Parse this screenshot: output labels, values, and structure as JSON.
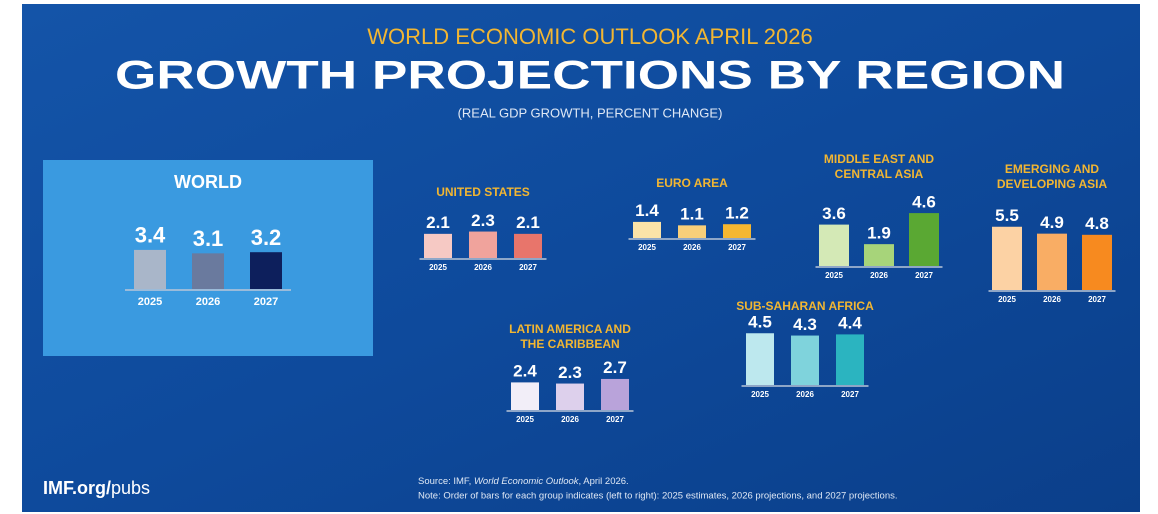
{
  "header": {
    "kicker": "WORLD ECONOMIC OUTLOOK APRIL 2026",
    "title": "GROWTH PROJECTIONS BY REGION",
    "subtitle": "(REAL GDP GROWTH, PERCENT CHANGE)"
  },
  "footer": {
    "site": "IMF.org/",
    "site_path": "pubs",
    "source_prefix": "Source: IMF, ",
    "source_title": "World Economic Outlook",
    "source_suffix": ", April 2026.",
    "note": "Note: Order of bars for each group indicates (left to right): 2025 estimates, 2026 projections, and 2027 projections."
  },
  "chart_data": [
    {
      "type": "bar",
      "title": [
        "WORLD"
      ],
      "categories": [
        "2025",
        "2026",
        "2027"
      ],
      "values": [
        3.4,
        3.1,
        3.2
      ],
      "colors": [
        "#a9b6c9",
        "#6a7a9e",
        "#0d1f5c"
      ]
    },
    {
      "type": "bar",
      "title": [
        "UNITED STATES"
      ],
      "categories": [
        "2025",
        "2026",
        "2027"
      ],
      "values": [
        2.1,
        2.3,
        2.1
      ],
      "colors": [
        "#f6c9c4",
        "#f0a39c",
        "#e8756b"
      ]
    },
    {
      "type": "bar",
      "title": [
        "EURO AREA"
      ],
      "categories": [
        "2025",
        "2026",
        "2027"
      ],
      "values": [
        1.4,
        1.1,
        1.2
      ],
      "colors": [
        "#fbe3a8",
        "#f8cf7a",
        "#f5b731"
      ]
    },
    {
      "type": "bar",
      "title": [
        "MIDDLE EAST AND",
        "CENTRAL ASIA"
      ],
      "categories": [
        "2025",
        "2026",
        "2027"
      ],
      "values": [
        3.6,
        1.9,
        4.6
      ],
      "colors": [
        "#d4e9b6",
        "#a7d47a",
        "#5aa833"
      ]
    },
    {
      "type": "bar",
      "title": [
        "EMERGING AND",
        "DEVELOPING ASIA"
      ],
      "categories": [
        "2025",
        "2026",
        "2027"
      ],
      "values": [
        5.5,
        4.9,
        4.8
      ],
      "colors": [
        "#fcd2a4",
        "#f9ad64",
        "#f78a1f"
      ]
    },
    {
      "type": "bar",
      "title": [
        "SUB-SAHARAN AFRICA"
      ],
      "categories": [
        "2025",
        "2026",
        "2027"
      ],
      "values": [
        4.5,
        4.3,
        4.4
      ],
      "colors": [
        "#bde8ee",
        "#7fd3dc",
        "#2bb4c0"
      ]
    },
    {
      "type": "bar",
      "title": [
        "LATIN AMERICA AND",
        "THE CARIBBEAN"
      ],
      "categories": [
        "2025",
        "2026",
        "2027"
      ],
      "values": [
        2.4,
        2.3,
        2.7
      ],
      "colors": [
        "#f2eef8",
        "#ddd0ec",
        "#b9a3da"
      ]
    }
  ]
}
